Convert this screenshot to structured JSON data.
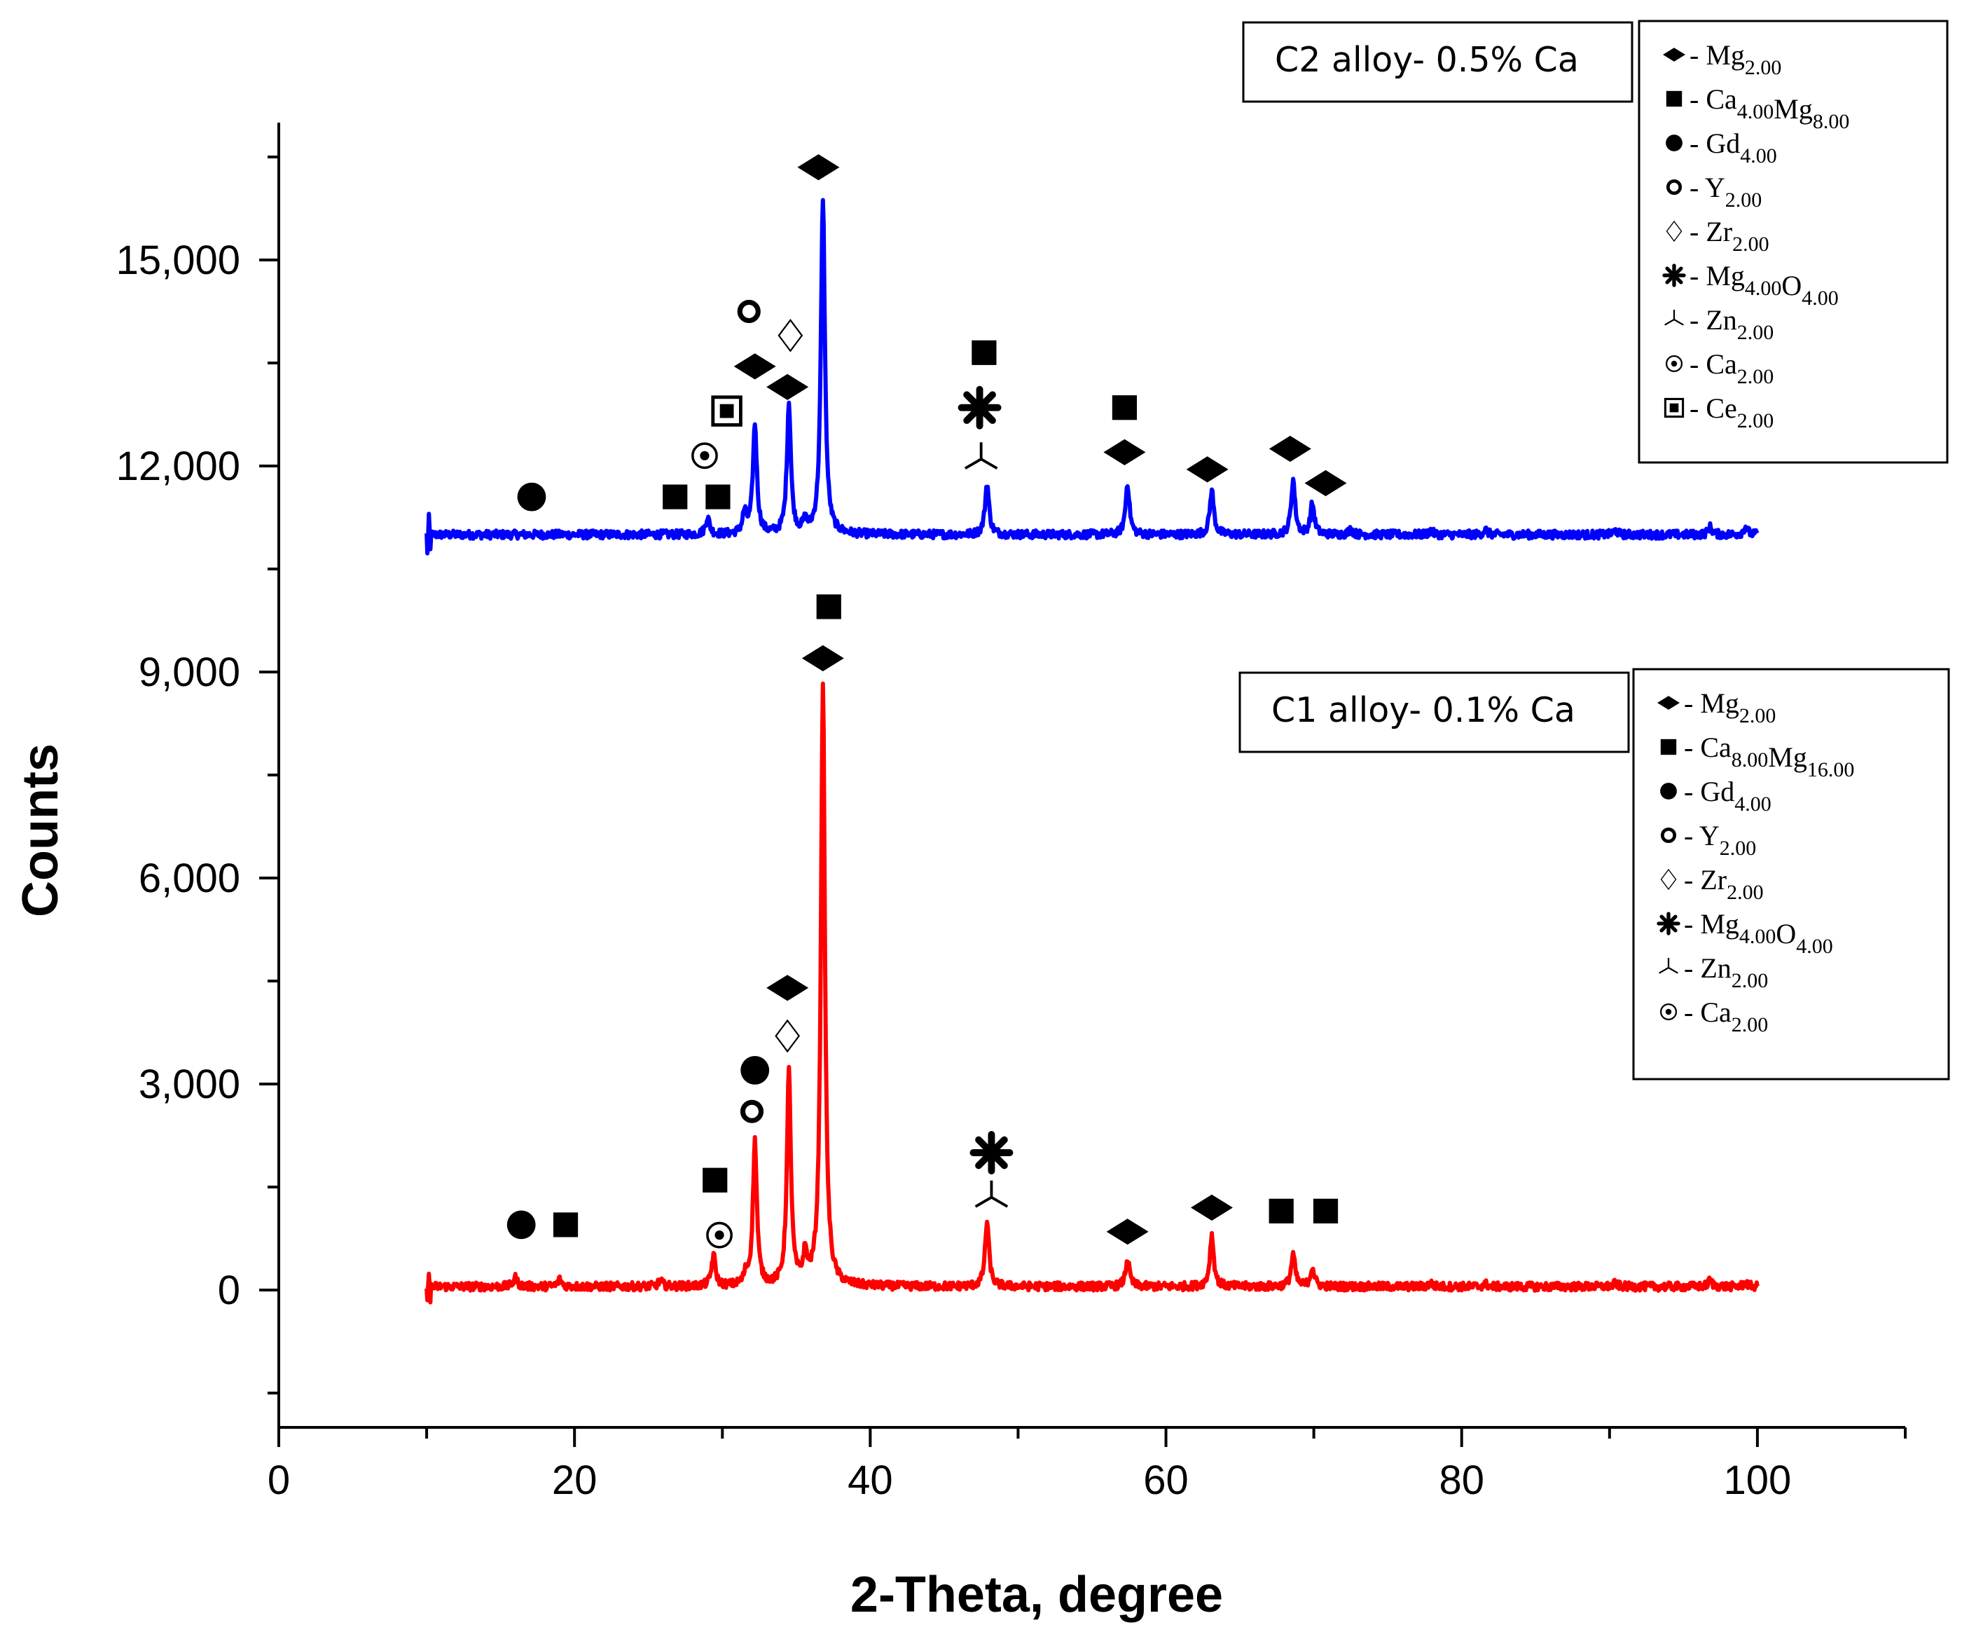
{
  "chart_data": {
    "type": "line",
    "title": "",
    "xlabel": "2-Theta, degree",
    "ylabel": "Counts",
    "xlim": [
      0,
      110
    ],
    "ylim": [
      -2000,
      17000
    ],
    "x_ticks": [
      0,
      20,
      40,
      60,
      80,
      100
    ],
    "x_tick_labels": [
      "0",
      "20",
      "40",
      "60",
      "80",
      "100"
    ],
    "y_ticks": [
      0,
      3000,
      6000,
      9000,
      12000,
      15000
    ],
    "y_tick_labels": [
      "0",
      "3,000",
      "6,000",
      "9,000",
      "12,000",
      "15,000"
    ],
    "x_range_measured": [
      10,
      100
    ],
    "series": [
      {
        "name": "C2 alloy- 0.5% Ca",
        "color": "#0000ff",
        "baseline": 11000,
        "peaks": [
          {
            "x": 29.0,
            "y": 11250
          },
          {
            "x": 31.5,
            "y": 11300
          },
          {
            "x": 32.2,
            "y": 12600
          },
          {
            "x": 34.5,
            "y": 12900
          },
          {
            "x": 35.6,
            "y": 11150
          },
          {
            "x": 36.8,
            "y": 15900
          },
          {
            "x": 47.9,
            "y": 11750
          },
          {
            "x": 57.4,
            "y": 11750
          },
          {
            "x": 63.1,
            "y": 11650
          },
          {
            "x": 68.6,
            "y": 11800
          },
          {
            "x": 69.9,
            "y": 11450
          },
          {
            "x": 72.5,
            "y": 11080
          },
          {
            "x": 77.9,
            "y": 11060
          },
          {
            "x": 81.6,
            "y": 11070
          },
          {
            "x": 90.4,
            "y": 11060
          },
          {
            "x": 96.8,
            "y": 11110
          },
          {
            "x": 99.2,
            "y": 11120
          }
        ]
      },
      {
        "name": "C1 alloy- 0.1% Ca",
        "color": "#ff0000",
        "baseline": 50,
        "peaks": [
          {
            "x": 16.0,
            "y": 180
          },
          {
            "x": 19.0,
            "y": 150
          },
          {
            "x": 25.8,
            "y": 130
          },
          {
            "x": 29.4,
            "y": 500
          },
          {
            "x": 31.6,
            "y": 200
          },
          {
            "x": 32.2,
            "y": 2150
          },
          {
            "x": 34.5,
            "y": 3150
          },
          {
            "x": 35.6,
            "y": 450
          },
          {
            "x": 36.8,
            "y": 8850
          },
          {
            "x": 47.9,
            "y": 1000
          },
          {
            "x": 57.4,
            "y": 450
          },
          {
            "x": 63.1,
            "y": 800
          },
          {
            "x": 68.6,
            "y": 520
          },
          {
            "x": 69.9,
            "y": 330
          },
          {
            "x": 77.9,
            "y": 100
          },
          {
            "x": 81.6,
            "y": 90
          },
          {
            "x": 90.4,
            "y": 100
          },
          {
            "x": 96.8,
            "y": 140
          },
          {
            "x": 99.2,
            "y": 110
          }
        ]
      }
    ],
    "annotations_c2": [
      {
        "symbol": "circle-filled",
        "x": 17.1,
        "y": 11550
      },
      {
        "symbol": "square-filled",
        "x": 26.8,
        "y": 11550
      },
      {
        "symbol": "square-filled",
        "x": 29.7,
        "y": 11550
      },
      {
        "symbol": "bullseye",
        "x": 28.8,
        "y": 12150
      },
      {
        "symbol": "boxed-square",
        "x": 30.3,
        "y": 12800
      },
      {
        "symbol": "ring",
        "x": 31.8,
        "y": 14250
      },
      {
        "symbol": "diamond-filled",
        "x": 32.2,
        "y": 13450
      },
      {
        "symbol": "diamond-open",
        "x": 34.6,
        "y": 13900
      },
      {
        "symbol": "diamond-filled",
        "x": 34.4,
        "y": 13150
      },
      {
        "symbol": "diamond-filled",
        "x": 36.5,
        "y": 16350
      },
      {
        "symbol": "square-filled",
        "x": 47.7,
        "y": 13650
      },
      {
        "symbol": "asterisk",
        "x": 47.4,
        "y": 12850
      },
      {
        "symbol": "tripod",
        "x": 47.5,
        "y": 12100
      },
      {
        "symbol": "square-filled",
        "x": 57.2,
        "y": 12850
      },
      {
        "symbol": "diamond-filled",
        "x": 57.2,
        "y": 12200
      },
      {
        "symbol": "diamond-filled",
        "x": 62.8,
        "y": 11950
      },
      {
        "symbol": "diamond-filled",
        "x": 68.4,
        "y": 12250
      },
      {
        "symbol": "diamond-filled",
        "x": 70.8,
        "y": 11750
      }
    ],
    "annotations_c1": [
      {
        "symbol": "circle-filled",
        "x": 16.4,
        "y": 950
      },
      {
        "symbol": "square-filled",
        "x": 19.4,
        "y": 950
      },
      {
        "symbol": "bullseye",
        "x": 29.8,
        "y": 800
      },
      {
        "symbol": "square-filled",
        "x": 29.5,
        "y": 1600
      },
      {
        "symbol": "ring",
        "x": 32.0,
        "y": 2600
      },
      {
        "symbol": "circle-filled",
        "x": 32.2,
        "y": 3200
      },
      {
        "symbol": "diamond-open",
        "x": 34.4,
        "y": 3700
      },
      {
        "symbol": "diamond-filled",
        "x": 34.4,
        "y": 4400
      },
      {
        "symbol": "diamond-filled",
        "x": 36.8,
        "y": 9200
      },
      {
        "symbol": "square-filled",
        "x": 37.2,
        "y": 9950
      },
      {
        "symbol": "asterisk",
        "x": 48.2,
        "y": 2000
      },
      {
        "symbol": "tripod",
        "x": 48.2,
        "y": 1350
      },
      {
        "symbol": "diamond-filled",
        "x": 57.4,
        "y": 850
      },
      {
        "symbol": "diamond-filled",
        "x": 63.1,
        "y": 1200
      },
      {
        "symbol": "square-filled",
        "x": 67.8,
        "y": 1150
      },
      {
        "symbol": "square-filled",
        "x": 70.8,
        "y": 1150
      }
    ]
  },
  "panels": {
    "c2_title": "C2 alloy- 0.5% Ca",
    "c1_title": "C1 alloy- 0.1% Ca"
  },
  "legend_c2": [
    {
      "symbol": "diamond-filled",
      "prefix": "- ",
      "parts": [
        [
          "Mg",
          ""
        ],
        [
          "2.00",
          "sub"
        ]
      ]
    },
    {
      "symbol": "square-filled",
      "prefix": "-  ",
      "parts": [
        [
          "Ca",
          ""
        ],
        [
          "4.00",
          "sub"
        ],
        [
          "Mg",
          ""
        ],
        [
          "8.00",
          "sub"
        ]
      ]
    },
    {
      "symbol": "circle-filled",
      "prefix": " - ",
      "parts": [
        [
          "Gd",
          ""
        ],
        [
          "4.00",
          "sub"
        ]
      ]
    },
    {
      "symbol": "ring",
      "prefix": " - ",
      "parts": [
        [
          "Y",
          ""
        ],
        [
          "2.00",
          "sub"
        ]
      ]
    },
    {
      "symbol": "diamond-open",
      "prefix": " - ",
      "parts": [
        [
          "Zr",
          ""
        ],
        [
          "2.00",
          "sub"
        ]
      ]
    },
    {
      "symbol": "asterisk",
      "prefix": "- ",
      "parts": [
        [
          "Mg",
          ""
        ],
        [
          "4.00",
          "sub"
        ],
        [
          "O",
          ""
        ],
        [
          "4.00",
          "sub"
        ]
      ]
    },
    {
      "symbol": "tripod",
      "prefix": "- ",
      "parts": [
        [
          "Zn",
          ""
        ],
        [
          "2.00",
          "sub"
        ]
      ]
    },
    {
      "symbol": "bullseye",
      "prefix": "- ",
      "parts": [
        [
          "Ca",
          ""
        ],
        [
          "2.00",
          "sub"
        ]
      ]
    },
    {
      "symbol": "boxed-square",
      "prefix": "- ",
      "parts": [
        [
          "Ce",
          ""
        ],
        [
          "2.00",
          "sub"
        ]
      ]
    }
  ],
  "legend_c1": [
    {
      "symbol": "diamond-filled",
      "prefix": " - ",
      "parts": [
        [
          "Mg",
          ""
        ],
        [
          "2.00",
          "sub"
        ]
      ]
    },
    {
      "symbol": "square-filled",
      "prefix": " -  ",
      "parts": [
        [
          "Ca",
          ""
        ],
        [
          "8.00",
          "sub"
        ],
        [
          "Mg",
          ""
        ],
        [
          "16.00",
          "sub"
        ]
      ]
    },
    {
      "symbol": "circle-filled",
      "prefix": " - ",
      "parts": [
        [
          "Gd",
          ""
        ],
        [
          "4.00",
          "sub"
        ]
      ]
    },
    {
      "symbol": "ring",
      "prefix": " - ",
      "parts": [
        [
          "Y",
          ""
        ],
        [
          "2.00",
          "sub"
        ]
      ]
    },
    {
      "symbol": "diamond-open",
      "prefix": " - ",
      "parts": [
        [
          "Zr",
          ""
        ],
        [
          "2.00",
          "sub"
        ]
      ]
    },
    {
      "symbol": "asterisk",
      "prefix": "- ",
      "parts": [
        [
          "Mg",
          ""
        ],
        [
          "4.00",
          "sub"
        ],
        [
          "O",
          ""
        ],
        [
          "4.00",
          "sub"
        ]
      ]
    },
    {
      "symbol": "tripod",
      "prefix": "- ",
      "parts": [
        [
          "Zn",
          ""
        ],
        [
          "2.00",
          "sub"
        ]
      ]
    },
    {
      "symbol": "bullseye",
      "prefix": "- ",
      "parts": [
        [
          "Ca",
          ""
        ],
        [
          "2.00",
          "sub"
        ]
      ]
    }
  ]
}
